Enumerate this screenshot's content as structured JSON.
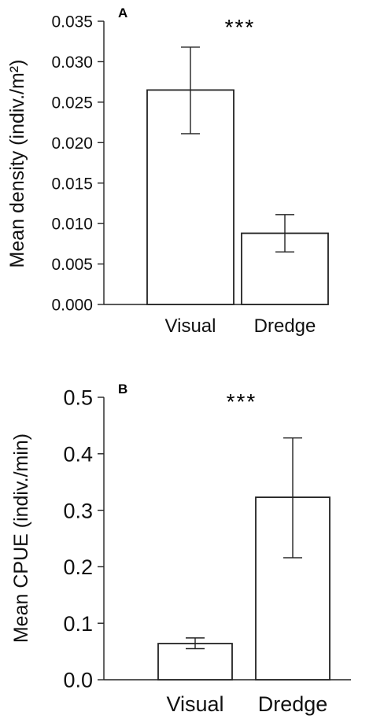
{
  "chart_data": [
    {
      "panel": "A",
      "type": "bar",
      "ylabel": "Mean density (indiv./m²)",
      "categories": [
        "Visual",
        "Dredge"
      ],
      "values": [
        0.0265,
        0.0088
      ],
      "errors": [
        [
          0.0211,
          0.0318
        ],
        [
          0.0065,
          0.0111
        ]
      ],
      "ylim": [
        0,
        0.035
      ],
      "yticks": [
        0,
        0.005,
        0.01,
        0.015,
        0.02,
        0.025,
        0.03,
        0.035
      ],
      "ytick_labels": [
        "0.000",
        "0.005",
        "0.010",
        "0.015",
        "0.020",
        "0.025",
        "0.030",
        "0.035"
      ],
      "significance": "***",
      "grid": false
    },
    {
      "panel": "B",
      "type": "bar",
      "ylabel": "Mean CPUE (indiv./min)",
      "categories": [
        "Visual",
        "Dredge"
      ],
      "values": [
        0.064,
        0.323
      ],
      "errors": [
        [
          0.055,
          0.074
        ],
        [
          0.216,
          0.428
        ]
      ],
      "ylim": [
        0,
        0.5
      ],
      "yticks": [
        0,
        0.1,
        0.2,
        0.3,
        0.4,
        0.5
      ],
      "ytick_labels": [
        "0.0",
        "0.1",
        "0.2",
        "0.3",
        "0.4",
        "0.5"
      ],
      "significance": "***",
      "grid": false
    }
  ]
}
